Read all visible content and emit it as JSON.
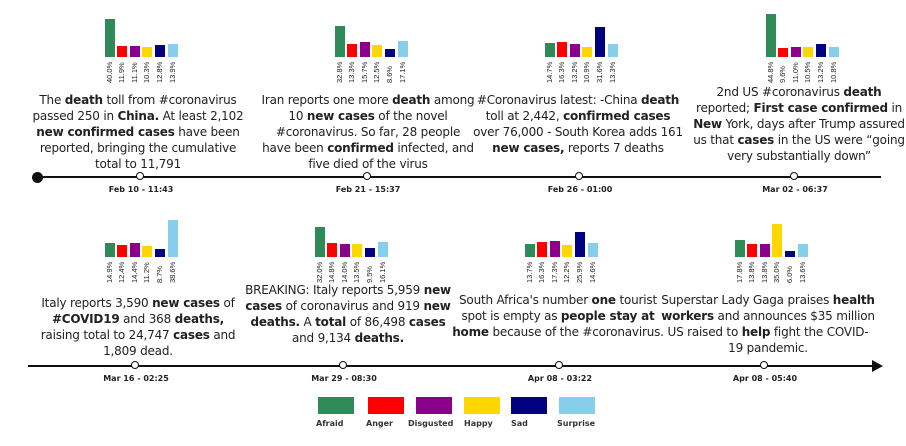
{
  "emotions": [
    {
      "name": "Afraid",
      "color": "#2e8b57"
    },
    {
      "name": "Anger",
      "color": "#ff0000"
    },
    {
      "name": "Disgusted",
      "color": "#8b008b"
    },
    {
      "name": "Happy",
      "color": "#ffd700"
    },
    {
      "name": "Sad",
      "color": "#000080"
    },
    {
      "name": "Surprise",
      "color": "#87ceeb"
    }
  ],
  "events": [
    {
      "timestamp": "Feb 10 - 11:43",
      "values": [
        40.0,
        11.9,
        11.1,
        10.3,
        12.8,
        13.9
      ],
      "labels": [
        "40.0%",
        "11.9%",
        "11.1%",
        "10.3%",
        "12.8%",
        "13.9%"
      ],
      "tweet": [
        {
          "t": "The "
        },
        {
          "t": "death",
          "b": true
        },
        {
          "t": " toll from #coronavirus passed 250 in "
        },
        {
          "t": "China.",
          "b": true
        },
        {
          "t": " At least 2,102 "
        },
        {
          "t": "new confirmed cases",
          "b": true
        },
        {
          "t": " have been reported, bringing the cumulative total to 11,791"
        }
      ]
    },
    {
      "timestamp": "Feb 21 - 15:37",
      "values": [
        32.8,
        13.3,
        15.7,
        12.5,
        8.6,
        17.1
      ],
      "labels": [
        "32.8%",
        "13.3%",
        "15.7%",
        "12.5%",
        "8.6%",
        "17.1%"
      ],
      "tweet": [
        {
          "t": "Iran reports one more "
        },
        {
          "t": "death",
          "b": true
        },
        {
          "t": " among 10 "
        },
        {
          "t": "new cases",
          "b": true
        },
        {
          "t": " of the novel #coronavirus. So far, 28 people have been "
        },
        {
          "t": "confirmed",
          "b": true
        },
        {
          "t": " infected, and five died of the virus"
        }
      ]
    },
    {
      "timestamp": "Feb 26 - 01:00",
      "values": [
        14.7,
        16.3,
        13.2,
        10.9,
        31.6,
        13.3
      ],
      "labels": [
        "14.7%",
        "16.3%",
        "13.2%",
        "10.9%",
        "31.6%",
        "13.3%"
      ],
      "tweet": [
        {
          "t": "#Coronavirus latest: -China "
        },
        {
          "t": "death",
          "b": true
        },
        {
          "t": " toll at 2,442, "
        },
        {
          "t": "confirmed cases",
          "b": true
        },
        {
          "t": " over 76,000 - South Korea adds 161 "
        },
        {
          "t": "new cases,",
          "b": true
        },
        {
          "t": " reports 7 deaths"
        }
      ]
    },
    {
      "timestamp": "Mar 02 - 06:37",
      "values": [
        44.8,
        9.6,
        11.0,
        10.5,
        13.2,
        10.8
      ],
      "labels": [
        "44.8%",
        "9.6%",
        "11.0%",
        "10.5%",
        "13.2%",
        "10.8%"
      ],
      "tweet": [
        {
          "t": "2nd US #coronavirus "
        },
        {
          "t": "death",
          "b": true
        },
        {
          "t": " reported; "
        },
        {
          "t": "First case confirmed",
          "b": true
        },
        {
          "t": " in "
        },
        {
          "t": "New",
          "b": true
        },
        {
          "t": " York, days after Trump assured us that "
        },
        {
          "t": "cases",
          "b": true
        },
        {
          "t": " in the US were “going very substantially down”"
        }
      ]
    },
    {
      "timestamp": "Mar 16 - 02:25",
      "values": [
        14.9,
        12.4,
        14.4,
        11.2,
        8.7,
        38.6
      ],
      "labels": [
        "14.9%",
        "12.4%",
        "14.4%",
        "11.2%",
        "8.7%",
        "38.6%"
      ],
      "tweet": [
        {
          "t": "Italy reports 3,590 "
        },
        {
          "t": "new cases",
          "b": true
        },
        {
          "t": " of "
        },
        {
          "t": "#COVID19",
          "b": true
        },
        {
          "t": " and 368 "
        },
        {
          "t": "deaths,",
          "b": true
        },
        {
          "t": " raising total to 24,747 "
        },
        {
          "t": "cases",
          "b": true
        },
        {
          "t": " and 1,809 dead."
        }
      ]
    },
    {
      "timestamp": "Mar 29 - 08:30",
      "values": [
        32.0,
        14.8,
        14.0,
        13.5,
        9.5,
        16.1
      ],
      "labels": [
        "32.0%",
        "14.8%",
        "14.0%",
        "13.5%",
        "9.5%",
        "16.1%"
      ],
      "tweet": [
        {
          "t": "BREAKING: Italy reports 5,959 "
        },
        {
          "t": "new cases",
          "b": true
        },
        {
          "t": " of coronavirus and 919 "
        },
        {
          "t": "new deaths.",
          "b": true
        },
        {
          "t": " A "
        },
        {
          "t": "total",
          "b": true
        },
        {
          "t": " of 86,498 "
        },
        {
          "t": "cases",
          "b": true
        },
        {
          "t": " and 9,134 "
        },
        {
          "t": "deaths.",
          "b": true
        }
      ]
    },
    {
      "timestamp": "Apr 08 - 03:22",
      "values": [
        13.7,
        16.3,
        17.3,
        12.2,
        25.9,
        14.6
      ],
      "labels": [
        "13.7%",
        "16.3%",
        "17.3%",
        "12.2%",
        "25.9%",
        "14.6%"
      ],
      "tweet": [
        {
          "t": "South Africa's number "
        },
        {
          "t": "one",
          "b": true
        },
        {
          "t": " tourist spot is empty as "
        },
        {
          "t": "people stay at home",
          "b": true
        },
        {
          "t": " because of the #coronavirus."
        }
      ]
    },
    {
      "timestamp": "Apr 08 - 05:40",
      "values": [
        17.8,
        13.8,
        13.8,
        35.0,
        6.0,
        13.6
      ],
      "labels": [
        "17.8%",
        "13.8%",
        "13.8%",
        "35.0%",
        "6.0%",
        "13.6%"
      ],
      "tweet": [
        {
          "t": "Superstar Lady Gaga praises "
        },
        {
          "t": "health workers",
          "b": true
        },
        {
          "t": " and announces $35 million US raised to "
        },
        {
          "t": "help",
          "b": true
        },
        {
          "t": " fight the COVID-19 pandemic."
        }
      ]
    }
  ]
}
